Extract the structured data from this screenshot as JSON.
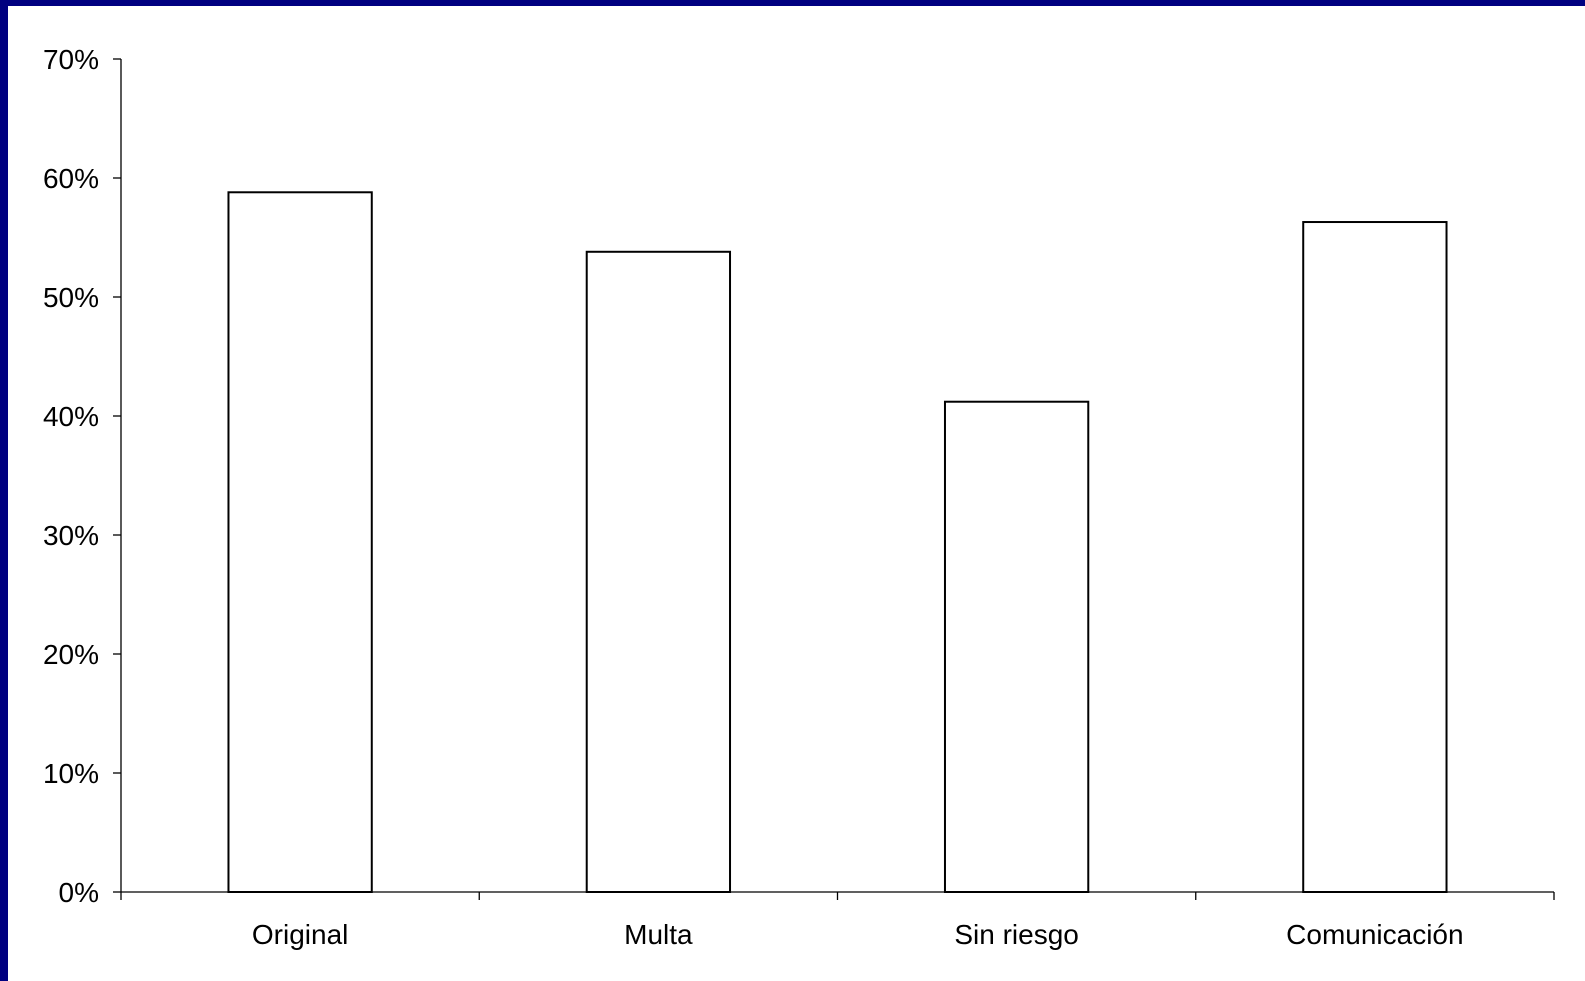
{
  "chart_data": {
    "type": "bar",
    "categories": [
      "Original",
      "Multa",
      "Sin riesgo",
      "Comunicación"
    ],
    "values": [
      58.8,
      53.8,
      41.2,
      56.3
    ],
    "value_unit": "%",
    "ylim": [
      0,
      70
    ],
    "yticks": [
      0,
      10,
      20,
      30,
      40,
      50,
      60,
      70
    ],
    "ytick_labels": [
      "0%",
      "10%",
      "20%",
      "30%",
      "40%",
      "50%",
      "60%",
      "70%"
    ],
    "grid": false,
    "legend": "none",
    "colors": {
      "page_background": "#000080",
      "plot_background": "#ffffff",
      "bar_fill": "#ffffff",
      "bar_stroke": "#000000"
    }
  }
}
